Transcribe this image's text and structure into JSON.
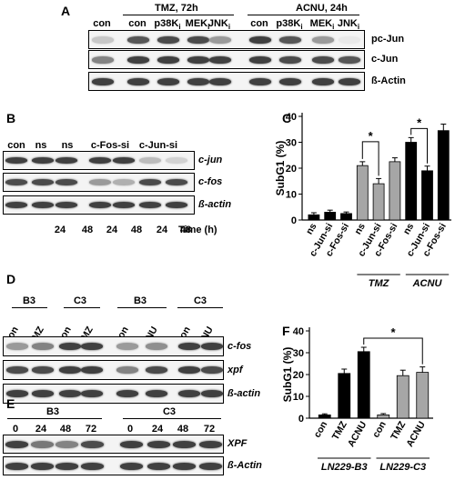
{
  "panels": {
    "A": {
      "label": "A",
      "group_labels": [
        "TMZ, 72h",
        "ACNU, 24h"
      ],
      "lane_labels": [
        "con",
        "con",
        "p38K",
        "MEK",
        "JNK",
        "con",
        "p38K",
        "MEK",
        "JNK"
      ],
      "inhibitor_subscript": "i",
      "row_labels": [
        "pc-Jun",
        "c-Jun",
        "ß-Actin"
      ],
      "band_intensity": [
        [
          0.25,
          0.75,
          0.8,
          0.8,
          0.45,
          0.85,
          0.75,
          0.45,
          0.1
        ],
        [
          0.55,
          0.85,
          0.85,
          0.85,
          0.85,
          0.85,
          0.8,
          0.8,
          0.75
        ],
        [
          0.85,
          0.85,
          0.85,
          0.85,
          0.85,
          0.85,
          0.85,
          0.85,
          0.85
        ]
      ]
    },
    "B": {
      "label": "B",
      "lane_labels": [
        "con",
        "ns",
        "ns",
        "c-Fos-si",
        "c-Jun-si"
      ],
      "row_labels": [
        "c-jun",
        "c-fos",
        "ß-actin"
      ],
      "time_values": [
        "24",
        "48",
        "24",
        "48",
        "24",
        "48"
      ],
      "time_label": "Time (h)",
      "band_intensity": [
        [
          0.85,
          0.85,
          0.85,
          0.85,
          0.85,
          0.3,
          0.2
        ],
        [
          0.8,
          0.8,
          0.8,
          0.45,
          0.35,
          0.8,
          0.8
        ],
        [
          0.85,
          0.85,
          0.85,
          0.85,
          0.85,
          0.85,
          0.85
        ]
      ]
    },
    "C": {
      "label": "C",
      "significance": "*",
      "group_labels": [
        "TMZ",
        "ACNU"
      ]
    },
    "D": {
      "label": "D",
      "group_labels": [
        "B3",
        "C3",
        "B3",
        "C3"
      ],
      "lane_labels": [
        "con",
        "TMZ",
        "con",
        "TMZ",
        "con",
        "ACNU",
        "con",
        "ACNU"
      ],
      "row_labels": [
        "c-fos",
        "xpf",
        "ß-actin"
      ],
      "band_intensity": [
        [
          0.45,
          0.55,
          0.85,
          0.85,
          0.45,
          0.5,
          0.85,
          0.85
        ],
        [
          0.8,
          0.8,
          0.85,
          0.85,
          0.55,
          0.8,
          0.85,
          0.8
        ],
        [
          0.85,
          0.85,
          0.85,
          0.85,
          0.85,
          0.85,
          0.85,
          0.85
        ]
      ]
    },
    "E": {
      "label": "E",
      "group_labels": [
        "B3",
        "C3"
      ],
      "lane_labels": [
        "0",
        "24",
        "48",
        "72",
        "0",
        "24",
        "48",
        "72"
      ],
      "row_labels": [
        "XPF",
        "ß-Actin"
      ],
      "band_intensity": [
        [
          0.85,
          0.6,
          0.55,
          0.8,
          0.85,
          0.85,
          0.85,
          0.85
        ],
        [
          0.85,
          0.85,
          0.85,
          0.85,
          0.85,
          0.85,
          0.85,
          0.85
        ]
      ]
    },
    "F": {
      "label": "F",
      "significance": "*",
      "group_labels": [
        "LN229-B3",
        "LN229-C3"
      ]
    }
  },
  "chart_data": [
    {
      "type": "bar",
      "panel": "C",
      "ylabel": "SubG1 (%)",
      "ylim": [
        0,
        40
      ],
      "yticks": [
        0,
        10,
        20,
        30,
        40
      ],
      "categories": [
        "ns",
        "c-Jun-si",
        "c-Fos-si",
        "ns",
        "c-Jun-si",
        "c-Fos-si",
        "ns",
        "c-Jun-si",
        "c-Fos-si"
      ],
      "values": [
        2.0,
        3.0,
        2.5,
        21.0,
        14.0,
        22.5,
        30.0,
        19.0,
        34.5
      ],
      "errors": [
        0.8,
        0.8,
        0.6,
        1.5,
        2.0,
        1.5,
        1.8,
        1.8,
        2.5
      ],
      "colors": [
        "#000000",
        "#000000",
        "#000000",
        "#a6a6a6",
        "#a6a6a6",
        "#a6a6a6",
        "#000000",
        "#000000",
        "#000000"
      ],
      "groups": [
        {
          "label": "TMZ",
          "from": 3,
          "to": 5
        },
        {
          "label": "ACNU",
          "from": 6,
          "to": 8
        }
      ],
      "brackets": [
        {
          "from": 3,
          "to": 4,
          "label": "*"
        },
        {
          "from": 6,
          "to": 7,
          "label": "*"
        }
      ]
    },
    {
      "type": "bar",
      "panel": "F",
      "ylabel": "SubG1 (%)",
      "ylim": [
        0,
        40
      ],
      "yticks": [
        0,
        10,
        20,
        30,
        40
      ],
      "categories": [
        "con",
        "TMZ",
        "ACNU",
        "con",
        "TMZ",
        "ACNU"
      ],
      "values": [
        1.5,
        20.5,
        30.5,
        1.5,
        19.5,
        21.0
      ],
      "errors": [
        0.5,
        2.0,
        2.0,
        0.6,
        2.5,
        2.5
      ],
      "colors": [
        "#000000",
        "#000000",
        "#000000",
        "#a6a6a6",
        "#a6a6a6",
        "#a6a6a6"
      ],
      "groups": [
        {
          "label": "LN229-B3",
          "from": 0,
          "to": 2
        },
        {
          "label": "LN229-C3",
          "from": 3,
          "to": 5
        }
      ],
      "brackets": [
        {
          "from": 2,
          "to": 5,
          "label": "*"
        }
      ]
    }
  ]
}
